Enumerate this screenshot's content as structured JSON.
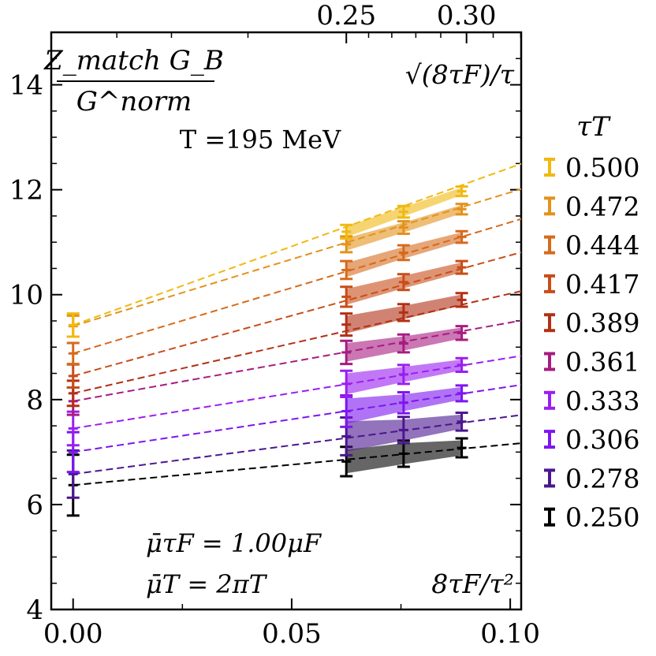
{
  "chart_data": {
    "type": "line",
    "title": "",
    "xlabel": "8τF/τ²",
    "x2label": "√(8τF)/τ",
    "ylabel_numerator": "Z_match G_B",
    "ylabel_denominator": "G^norm",
    "xlim": [
      -0.005,
      0.1025
    ],
    "ylim": [
      4,
      15
    ],
    "xticks": [
      0.0,
      0.05,
      0.1
    ],
    "xtick_labels": [
      "0.00",
      "0.05",
      "0.10"
    ],
    "yticks": [
      4,
      6,
      8,
      10,
      12,
      14
    ],
    "ytick_labels": [
      "4",
      "6",
      "8",
      "10",
      "12",
      "14"
    ],
    "x2ticks": [
      0.25,
      0.3
    ],
    "x2tick_labels": [
      "0.25",
      "0.30"
    ],
    "annotations": {
      "temperature": "T =195 MeV",
      "mu_tauF": "μ̄τF = 1.00μF",
      "mu_T": "μ̄T = 2πT"
    },
    "legend_title": "τT",
    "legend_position": "right",
    "x": [
      0.0625,
      0.0756,
      0.0889
    ],
    "series": [
      {
        "name": "0.500",
        "color": "#f0b912",
        "extrap": 9.42,
        "extrap_err": 0.22,
        "slope": 30.0,
        "values": [
          11.2,
          11.58,
          11.97
        ],
        "errors": [
          0.13,
          0.11,
          0.09
        ]
      },
      {
        "name": "0.472",
        "color": "#e3921c",
        "extrap": 9.4,
        "extrap_err": 0.2,
        "slope": 25.5,
        "values": [
          10.96,
          11.28,
          11.63
        ],
        "errors": [
          0.15,
          0.12,
          0.1
        ]
      },
      {
        "name": "0.444",
        "color": "#d66a1d",
        "extrap": 8.88,
        "extrap_err": 0.2,
        "slope": 25.0,
        "values": [
          10.47,
          10.8,
          11.1
        ],
        "errors": [
          0.17,
          0.14,
          0.11
        ]
      },
      {
        "name": "0.417",
        "color": "#c84d18",
        "extrap": 8.45,
        "extrap_err": 0.22,
        "slope": 23.0,
        "values": [
          9.96,
          10.24,
          10.52
        ],
        "errors": [
          0.19,
          0.15,
          0.12
        ]
      },
      {
        "name": "0.389",
        "color": "#b33015",
        "extrap": 8.12,
        "extrap_err": 0.24,
        "slope": 19.0,
        "values": [
          9.43,
          9.66,
          9.9
        ],
        "errors": [
          0.21,
          0.16,
          0.13
        ]
      },
      {
        "name": "0.361",
        "color": "#a71c80",
        "extrap": 7.97,
        "extrap_err": 0.26,
        "slope": 15.0,
        "values": [
          8.9,
          9.07,
          9.27
        ],
        "errors": [
          0.22,
          0.17,
          0.13
        ]
      },
      {
        "name": "0.333",
        "color": "#9a1ef0",
        "extrap": 7.45,
        "extrap_err": 0.32,
        "slope": 13.5,
        "values": [
          8.3,
          8.48,
          8.66
        ],
        "errors": [
          0.25,
          0.18,
          0.13
        ]
      },
      {
        "name": "0.306",
        "color": "#7d16ef",
        "extrap": 7.0,
        "extrap_err": 0.38,
        "slope": 12.5,
        "values": [
          7.78,
          7.94,
          8.12
        ],
        "errors": [
          0.3,
          0.2,
          0.15
        ]
      },
      {
        "name": "0.278",
        "color": "#4b1690",
        "extrap": 6.58,
        "extrap_err": 0.45,
        "slope": 11.0,
        "values": [
          7.3,
          7.42,
          7.58
        ],
        "errors": [
          0.36,
          0.25,
          0.17
        ]
      },
      {
        "name": "0.250",
        "color": "#000000",
        "extrap": 6.37,
        "extrap_err": 0.58,
        "slope": 7.8,
        "values": [
          6.82,
          6.97,
          7.08
        ],
        "errors": [
          0.28,
          0.25,
          0.18
        ]
      }
    ]
  }
}
